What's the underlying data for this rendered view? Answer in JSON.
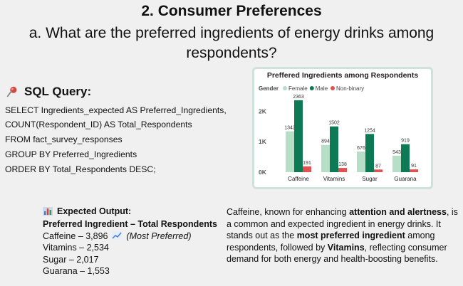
{
  "header": {
    "title": "2. Consumer Preferences",
    "subtitle": "a. What are the preferred ingredients of energy drinks among respondents?"
  },
  "sql": {
    "heading": "SQL Query:",
    "lines": [
      "SELECT Ingredients_expected AS Preferred_Ingredients,",
      "COUNT(Respondent_ID) AS Total_Respondents",
      "FROM fact_survey_responses",
      "GROUP BY Preferred_Ingredients",
      "ORDER BY Total_Respondents DESC;"
    ]
  },
  "chart_data": {
    "type": "bar",
    "title": "Preffered Ingredients among Respondents",
    "legend_title": "Gender",
    "legend_placement": "top-left",
    "categories": [
      "Caffeine",
      "Vitamins",
      "Sugar",
      "Guarana"
    ],
    "series": [
      {
        "name": "Female",
        "color": "#b7dfc7",
        "values": [
          1342,
          894,
          676,
          543
        ]
      },
      {
        "name": "Male",
        "color": "#0e7a55",
        "values": [
          2363,
          1502,
          1254,
          919
        ]
      },
      {
        "name": "Non-binary",
        "color": "#e0524f",
        "values": [
          191,
          138,
          87,
          91
        ]
      }
    ],
    "y_ticks": [
      "0K",
      "1K",
      "2K"
    ],
    "ylim": [
      0,
      2500
    ],
    "grid": false
  },
  "output": {
    "heading": "Expected Output:",
    "column_header": "Preferred Ingredient – Total Respondents",
    "rows": [
      {
        "text": "Caffeine – 3,896",
        "note": "(Most Preferred)"
      },
      {
        "text": "Vitamins – 2,534"
      },
      {
        "text": "Sugar – 2,017"
      },
      {
        "text": "Guarana – 1,553"
      }
    ]
  },
  "description": {
    "p1": "Caffeine, known for enhancing ",
    "b1": "attention and alertness",
    "p2": ", is a common and expected ingredient in energy drinks. It stands out as the ",
    "b2": "most preferred ingredient",
    "p3": " among respondents, followed by ",
    "b3": "Vitamins",
    "p4": ", reflecting consumer demand for both energy and health-boosting benefits."
  },
  "colors": {
    "card_border": "#cfe2da",
    "pin_red": "#d6453d",
    "trend_blue": "#3f7fd0"
  },
  "icons": [
    "pin-icon",
    "bar-chart-icon",
    "trend-up-icon"
  ]
}
